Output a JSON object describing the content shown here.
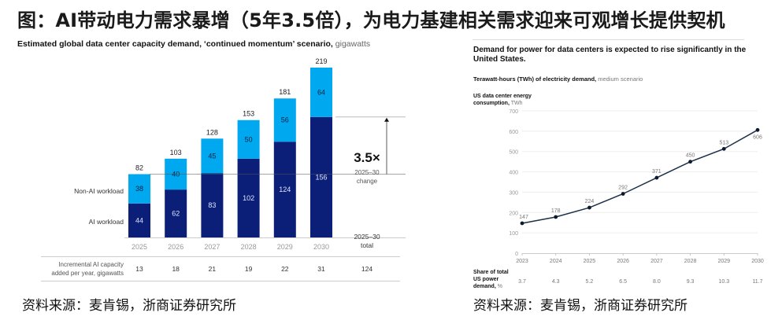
{
  "title": "图：AI带动电力需求暴增（5年3.5倍），为电力基建相关需求迎来可观增长提供契机",
  "left_panel": {
    "subtitle_bold": "Estimated global data center capacity demand, ‘continued momentum’ scenario,",
    "subtitle_light": " gigawatts",
    "source": "资料来源：麦肯锡，浙商证券研究所"
  },
  "right_panel": {
    "title": "Demand for power for data centers is expected to rise significantly in the United States.",
    "subtitle_bold": "Terawatt-hours (TWh) of electricity demand,",
    "subtitle_light": " medium scenario",
    "ylabel_bold1": "US data center energy",
    "ylabel_bold2": "consumption,",
    "ylabel_light": " TWh",
    "share_label_1": "Share of total",
    "share_label_2": "US power",
    "share_label_3_bold": "demand,",
    "share_label_3_light": " %",
    "source": "资料来源：麦肯锡，浙商证券研究所"
  },
  "chart_data": [
    {
      "type": "bar",
      "stacked": true,
      "title": "Estimated global data center capacity demand, ‘continued momentum’ scenario, gigawatts",
      "categories": [
        "2025",
        "2026",
        "2027",
        "2028",
        "2029",
        "2030"
      ],
      "series": [
        {
          "name": "AI workload",
          "values": [
            44,
            62,
            83,
            102,
            124,
            156
          ],
          "color": "#0b1f78"
        },
        {
          "name": "Non-AI workload",
          "values": [
            38,
            40,
            45,
            50,
            56,
            64
          ],
          "color": "#00a8f0"
        }
      ],
      "totals": [
        "82",
        "103",
        "128",
        "153",
        "181",
        "219"
      ],
      "ylim": [
        0,
        219
      ],
      "legend_placement": "left",
      "annotation": {
        "value": "3.5×",
        "line1": "2025–30",
        "line2": "change"
      },
      "total_header": {
        "line1": "2025–30",
        "line2": "total"
      },
      "table_row": {
        "label_line1": "Incremental AI capacity",
        "label_line2": "added per year, gigawatts",
        "values": [
          "13",
          "18",
          "21",
          "19",
          "22",
          "31"
        ],
        "total": "124"
      }
    },
    {
      "type": "line",
      "title": "Terawatt-hours (TWh) of electricity demand, medium scenario",
      "x": [
        "2023",
        "2024",
        "2025",
        "2026",
        "2027",
        "2028",
        "2029",
        "2030"
      ],
      "series": [
        {
          "name": "US data center energy consumption, TWh",
          "values": [
            147,
            178,
            224,
            292,
            371,
            450,
            513,
            606
          ],
          "color": "#1c3048"
        }
      ],
      "point_labels": [
        "147",
        "178",
        "224",
        "292",
        "371",
        "450",
        "513",
        "606"
      ],
      "yticks": [
        "0",
        "100",
        "200",
        "300",
        "400",
        "500",
        "600",
        "700"
      ],
      "ylim": [
        0,
        700
      ],
      "grid": true,
      "share_row": [
        "3.7",
        "4.3",
        "5.2",
        "6.5",
        "8.0",
        "9.3",
        "10.3",
        "11.7"
      ]
    }
  ]
}
